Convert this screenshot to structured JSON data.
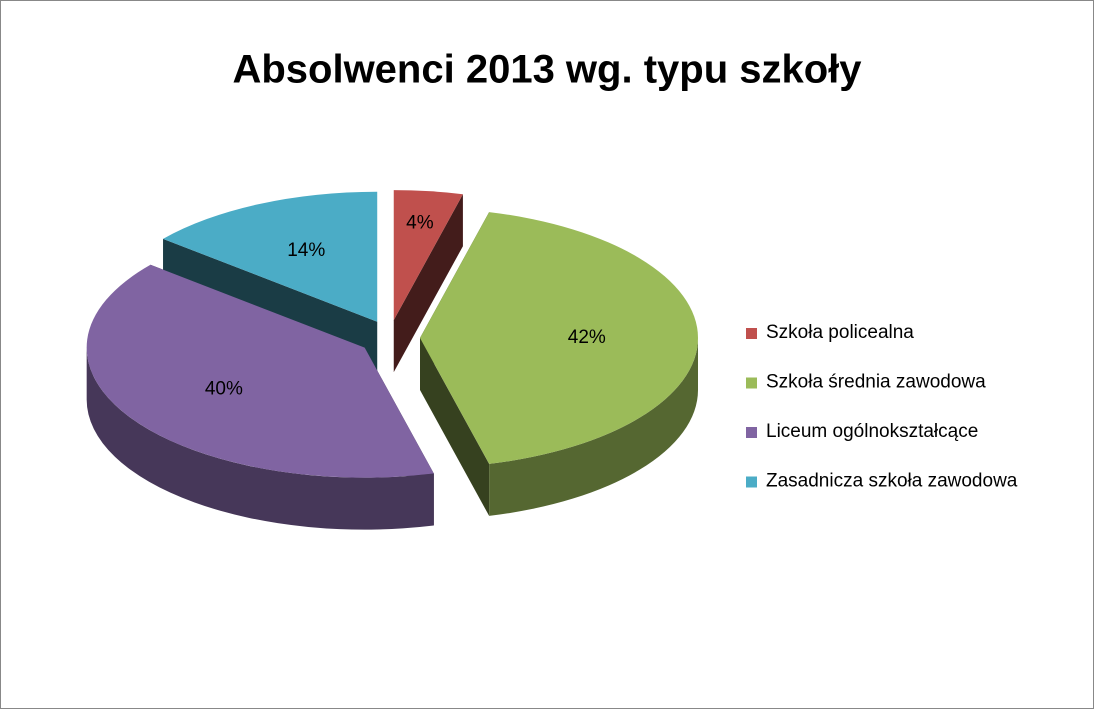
{
  "chart_data": {
    "type": "pie",
    "title": "Absolwenci 2013 wg. typu szkoły",
    "categories": [
      "Szkoła policealna",
      "Szkoła średnia zawodowa",
      "Liceum ogólnokształcące",
      "Zasadnicza szkoła zawodowa"
    ],
    "values": [
      4,
      42,
      40,
      14
    ],
    "value_labels": [
      "4%",
      "42%",
      "40%",
      "14%"
    ],
    "colors": [
      "#c0504d",
      "#9bbb59",
      "#8064a2",
      "#4bacc6"
    ],
    "legend": "right"
  }
}
